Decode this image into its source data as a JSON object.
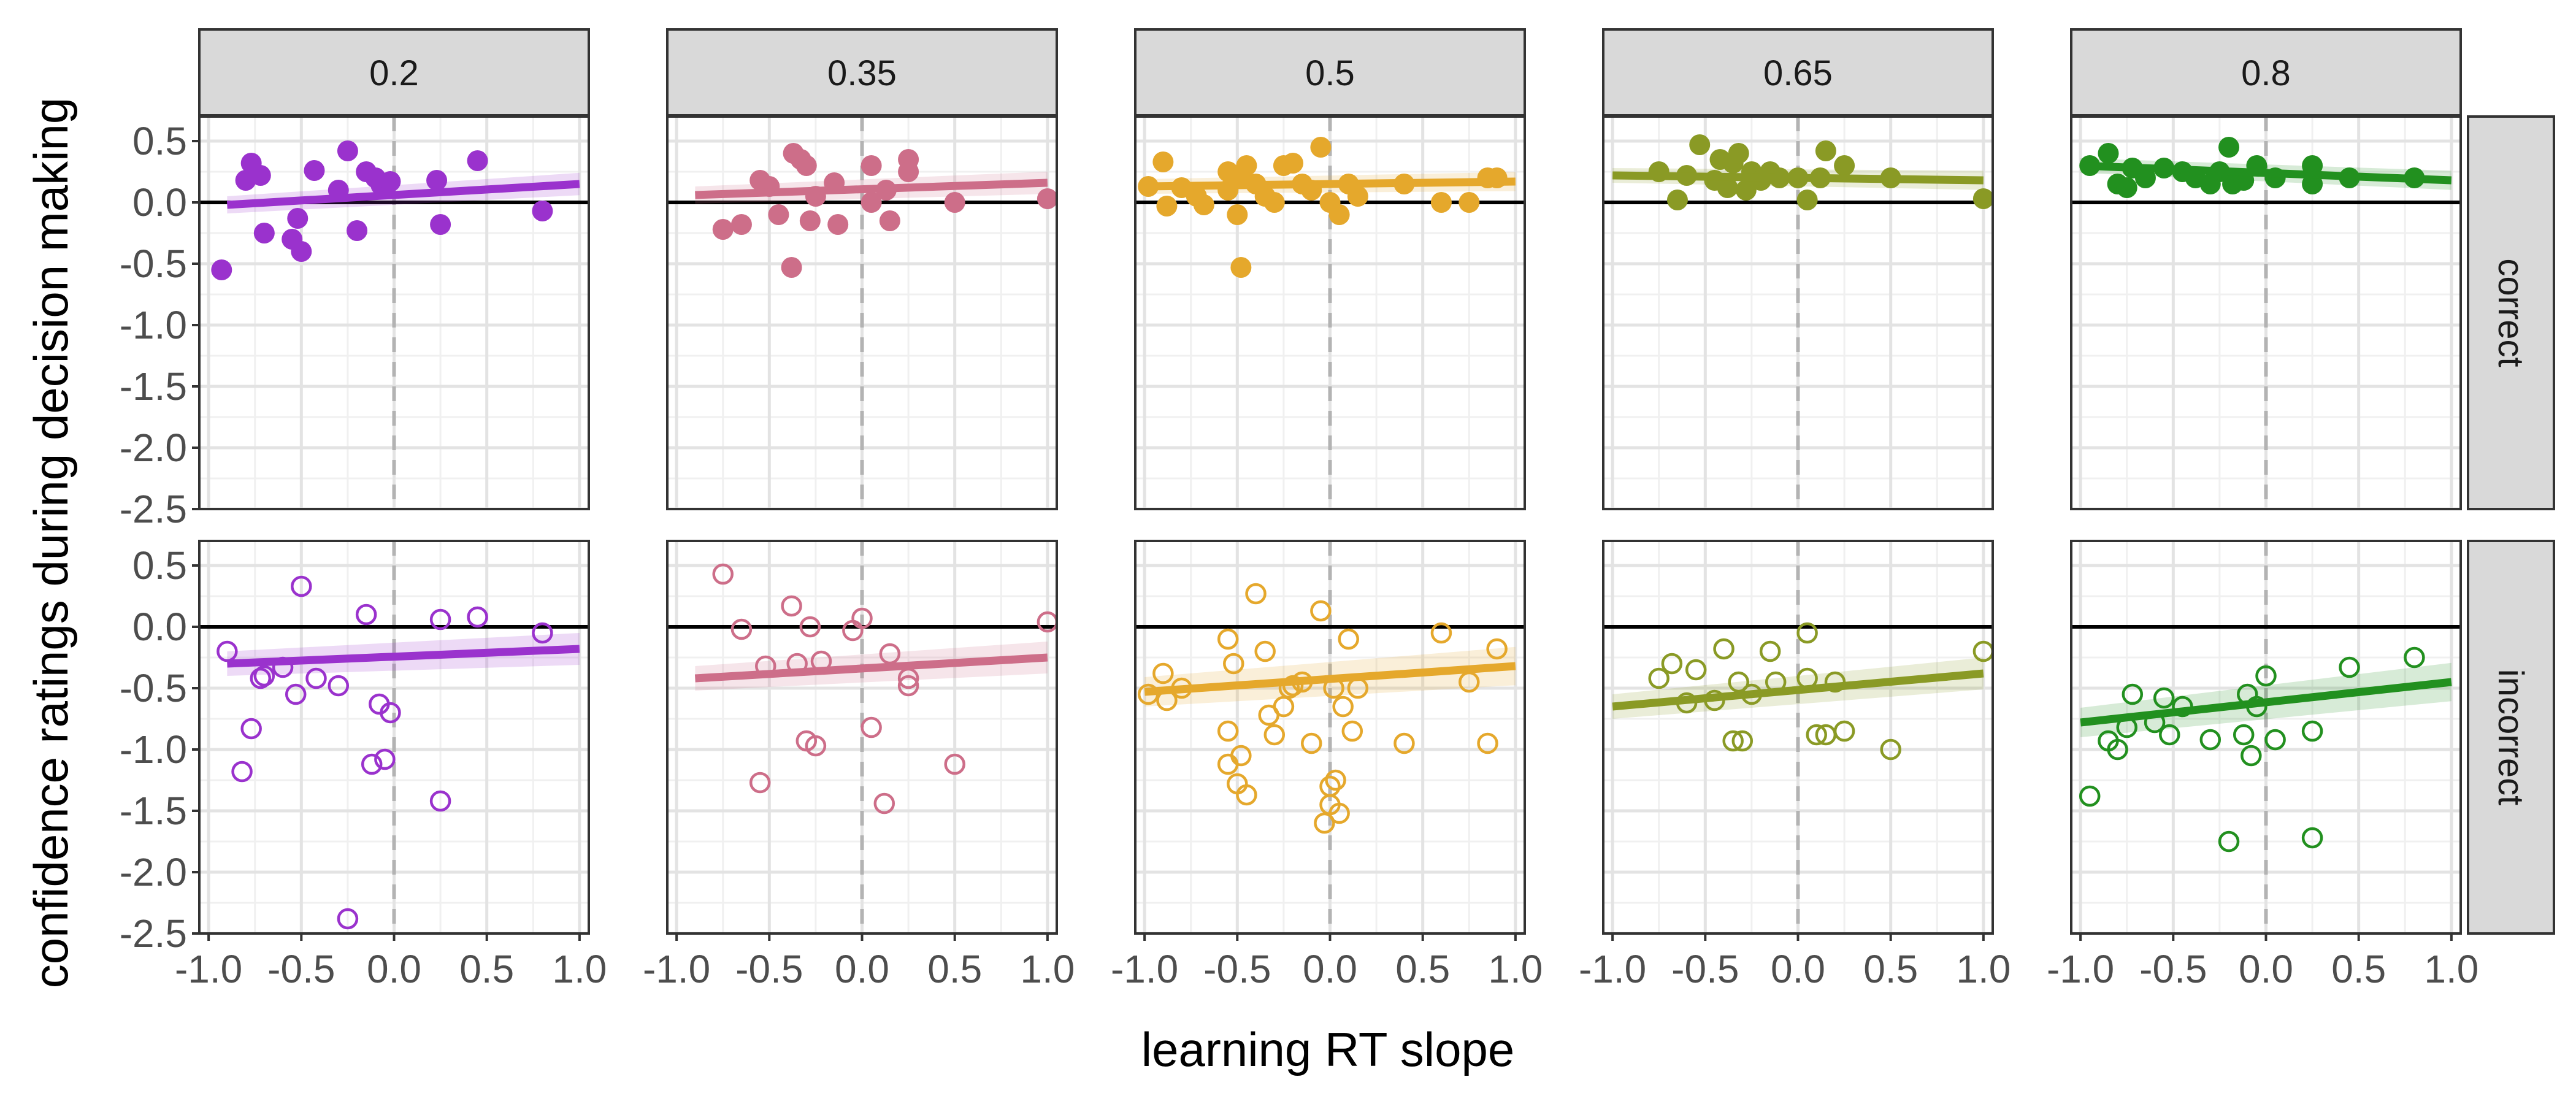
{
  "chart_data": {
    "type": "scatter",
    "title": "",
    "xlabel": "learning RT slope",
    "ylabel": "confidence ratings during decision making",
    "xlim": [
      -1.05,
      1.05
    ],
    "ylim": [
      -2.5,
      0.7
    ],
    "x_ticks": [
      -1.0,
      -0.5,
      0.0,
      0.5,
      1.0
    ],
    "x_tick_labels": [
      "-1.0",
      "-0.5",
      "0.0",
      "0.5",
      "1.0"
    ],
    "y_ticks": [
      0.5,
      0.0,
      -0.5,
      -1.0,
      -1.5,
      -2.0,
      -2.5
    ],
    "y_tick_labels": [
      "0.5",
      "0.0",
      "-0.5",
      "-1.0",
      "-1.5",
      "-2.0",
      "-2.5"
    ],
    "grid": true,
    "reference_lines": {
      "horizontal_y": 0,
      "vertical_x": 0
    },
    "column_strips": [
      "0.2",
      "0.35",
      "0.5",
      "0.65",
      "0.8"
    ],
    "row_strips": [
      "correct",
      "incorrect"
    ],
    "colors": [
      "#9a32cd",
      "#cd6e89",
      "#e5a82c",
      "#8a9a25",
      "#22901f"
    ],
    "panels": [
      {
        "col": "0.2",
        "row": "correct",
        "marker": "filled",
        "fit": {
          "x": [
            -0.9,
            1.0
          ],
          "y": [
            -0.02,
            0.15
          ],
          "band": 0.07
        },
        "points": [
          [
            -0.93,
            -0.55
          ],
          [
            -0.8,
            0.18
          ],
          [
            -0.77,
            0.32
          ],
          [
            -0.72,
            0.22
          ],
          [
            -0.7,
            -0.25
          ],
          [
            -0.55,
            -0.3
          ],
          [
            -0.52,
            -0.13
          ],
          [
            -0.5,
            -0.4
          ],
          [
            -0.43,
            0.26
          ],
          [
            -0.3,
            0.1
          ],
          [
            -0.25,
            0.42
          ],
          [
            -0.2,
            -0.23
          ],
          [
            -0.15,
            0.25
          ],
          [
            -0.1,
            0.2
          ],
          [
            -0.07,
            0.14
          ],
          [
            -0.02,
            0.17
          ],
          [
            0.23,
            0.18
          ],
          [
            0.25,
            -0.18
          ],
          [
            0.45,
            0.34
          ],
          [
            0.8,
            -0.07
          ]
        ]
      },
      {
        "col": "0.2",
        "row": "incorrect",
        "marker": "open",
        "fit": {
          "x": [
            -0.9,
            1.0
          ],
          "y": [
            -0.3,
            -0.18
          ],
          "band": 0.1
        },
        "points": [
          [
            -0.9,
            -0.2
          ],
          [
            -0.82,
            -1.18
          ],
          [
            -0.77,
            -0.83
          ],
          [
            -0.72,
            -0.42
          ],
          [
            -0.7,
            -0.4
          ],
          [
            -0.6,
            -0.33
          ],
          [
            -0.53,
            -0.55
          ],
          [
            -0.5,
            0.33
          ],
          [
            -0.42,
            -0.42
          ],
          [
            -0.3,
            -0.48
          ],
          [
            -0.25,
            -2.38
          ],
          [
            -0.15,
            0.1
          ],
          [
            -0.12,
            -1.12
          ],
          [
            -0.08,
            -0.63
          ],
          [
            -0.05,
            -1.08
          ],
          [
            -0.02,
            -0.7
          ],
          [
            0.25,
            -1.42
          ],
          [
            0.25,
            0.06
          ],
          [
            0.45,
            0.08
          ],
          [
            0.8,
            -0.05
          ]
        ]
      },
      {
        "col": "0.35",
        "row": "correct",
        "marker": "filled",
        "fit": {
          "x": [
            -0.9,
            1.0
          ],
          "y": [
            0.06,
            0.16
          ],
          "band": 0.07
        },
        "points": [
          [
            -0.75,
            -0.22
          ],
          [
            -0.65,
            -0.18
          ],
          [
            -0.55,
            0.18
          ],
          [
            -0.5,
            0.13
          ],
          [
            -0.45,
            -0.1
          ],
          [
            -0.38,
            -0.53
          ],
          [
            -0.37,
            0.4
          ],
          [
            -0.33,
            0.35
          ],
          [
            -0.3,
            0.3
          ],
          [
            -0.28,
            -0.15
          ],
          [
            -0.25,
            0.05
          ],
          [
            -0.15,
            0.16
          ],
          [
            -0.13,
            -0.18
          ],
          [
            0.05,
            0.3
          ],
          [
            0.05,
            0.0
          ],
          [
            0.13,
            0.1
          ],
          [
            0.15,
            -0.15
          ],
          [
            0.25,
            0.35
          ],
          [
            0.25,
            0.25
          ],
          [
            0.5,
            0.0
          ],
          [
            1.0,
            0.03
          ]
        ]
      },
      {
        "col": "0.35",
        "row": "incorrect",
        "marker": "open",
        "fit": {
          "x": [
            -0.9,
            1.0
          ],
          "y": [
            -0.42,
            -0.25
          ],
          "band": 0.1
        },
        "points": [
          [
            -0.75,
            0.43
          ],
          [
            -0.65,
            -0.02
          ],
          [
            -0.55,
            -1.27
          ],
          [
            -0.52,
            -0.32
          ],
          [
            -0.38,
            0.17
          ],
          [
            -0.35,
            -0.3
          ],
          [
            -0.3,
            -0.93
          ],
          [
            -0.28,
            0.0
          ],
          [
            -0.25,
            -0.97
          ],
          [
            -0.22,
            -0.28
          ],
          [
            -0.05,
            -0.03
          ],
          [
            0.0,
            0.07
          ],
          [
            0.05,
            -0.82
          ],
          [
            0.12,
            -1.44
          ],
          [
            0.15,
            -0.22
          ],
          [
            0.25,
            -0.48
          ],
          [
            0.25,
            -0.42
          ],
          [
            0.5,
            -1.12
          ],
          [
            1.0,
            0.04
          ]
        ]
      },
      {
        "col": "0.5",
        "row": "correct",
        "marker": "filled",
        "fit": {
          "x": [
            -1.0,
            1.0
          ],
          "y": [
            0.13,
            0.17
          ],
          "band": 0.06
        },
        "points": [
          [
            -0.98,
            0.13
          ],
          [
            -0.9,
            0.33
          ],
          [
            -0.88,
            -0.03
          ],
          [
            -0.8,
            0.12
          ],
          [
            -0.72,
            0.05
          ],
          [
            -0.68,
            -0.02
          ],
          [
            -0.55,
            0.25
          ],
          [
            -0.55,
            0.1
          ],
          [
            -0.5,
            -0.1
          ],
          [
            -0.48,
            0.2
          ],
          [
            -0.48,
            -0.53
          ],
          [
            -0.45,
            0.3
          ],
          [
            -0.4,
            0.15
          ],
          [
            -0.35,
            0.05
          ],
          [
            -0.3,
            0.0
          ],
          [
            -0.25,
            0.3
          ],
          [
            -0.2,
            0.32
          ],
          [
            -0.15,
            0.15
          ],
          [
            -0.1,
            0.1
          ],
          [
            -0.05,
            0.45
          ],
          [
            0.0,
            0.0
          ],
          [
            0.05,
            -0.1
          ],
          [
            0.1,
            0.15
          ],
          [
            0.15,
            0.05
          ],
          [
            0.4,
            0.15
          ],
          [
            0.6,
            0.0
          ],
          [
            0.75,
            0.0
          ],
          [
            0.85,
            0.2
          ],
          [
            0.9,
            0.2
          ]
        ]
      },
      {
        "col": "0.5",
        "row": "incorrect",
        "marker": "open",
        "fit": {
          "x": [
            -1.0,
            1.0
          ],
          "y": [
            -0.53,
            -0.32
          ],
          "band": 0.12
        },
        "points": [
          [
            -0.98,
            -0.55
          ],
          [
            -0.9,
            -0.38
          ],
          [
            -0.88,
            -0.6
          ],
          [
            -0.8,
            -0.5
          ],
          [
            -0.55,
            -0.1
          ],
          [
            -0.55,
            -0.85
          ],
          [
            -0.55,
            -1.12
          ],
          [
            -0.52,
            -0.3
          ],
          [
            -0.5,
            -1.28
          ],
          [
            -0.48,
            -1.05
          ],
          [
            -0.45,
            -1.37
          ],
          [
            -0.4,
            0.27
          ],
          [
            -0.35,
            -0.2
          ],
          [
            -0.33,
            -0.72
          ],
          [
            -0.3,
            -0.88
          ],
          [
            -0.25,
            -0.65
          ],
          [
            -0.22,
            -0.5
          ],
          [
            -0.2,
            -0.48
          ],
          [
            -0.15,
            -0.45
          ],
          [
            -0.1,
            -0.95
          ],
          [
            -0.05,
            0.13
          ],
          [
            -0.03,
            -1.6
          ],
          [
            0.0,
            -1.45
          ],
          [
            0.0,
            -1.3
          ],
          [
            0.02,
            -0.5
          ],
          [
            0.03,
            -1.25
          ],
          [
            0.05,
            -1.52
          ],
          [
            0.07,
            -0.65
          ],
          [
            0.1,
            -0.1
          ],
          [
            0.12,
            -0.85
          ],
          [
            0.15,
            -0.5
          ],
          [
            0.4,
            -0.95
          ],
          [
            0.6,
            -0.05
          ],
          [
            0.75,
            -0.45
          ],
          [
            0.85,
            -0.95
          ],
          [
            0.9,
            -0.18
          ]
        ]
      },
      {
        "col": "0.65",
        "row": "correct",
        "marker": "filled",
        "fit": {
          "x": [
            -1.0,
            1.0
          ],
          "y": [
            0.22,
            0.18
          ],
          "band": 0.06
        },
        "points": [
          [
            -0.75,
            0.25
          ],
          [
            -0.65,
            0.02
          ],
          [
            -0.6,
            0.22
          ],
          [
            -0.53,
            0.47
          ],
          [
            -0.45,
            0.18
          ],
          [
            -0.42,
            0.35
          ],
          [
            -0.38,
            0.12
          ],
          [
            -0.35,
            0.32
          ],
          [
            -0.32,
            0.4
          ],
          [
            -0.28,
            0.1
          ],
          [
            -0.25,
            0.25
          ],
          [
            -0.2,
            0.18
          ],
          [
            -0.15,
            0.25
          ],
          [
            -0.1,
            0.2
          ],
          [
            0.0,
            0.2
          ],
          [
            0.05,
            0.02
          ],
          [
            0.12,
            0.2
          ],
          [
            0.15,
            0.42
          ],
          [
            0.25,
            0.3
          ],
          [
            0.5,
            0.2
          ],
          [
            1.0,
            0.03
          ]
        ]
      },
      {
        "col": "0.65",
        "row": "incorrect",
        "marker": "open",
        "fit": {
          "x": [
            -1.0,
            1.0
          ],
          "y": [
            -0.65,
            -0.38
          ],
          "band": 0.1
        },
        "points": [
          [
            -0.75,
            -0.42
          ],
          [
            -0.68,
            -0.3
          ],
          [
            -0.6,
            -0.62
          ],
          [
            -0.55,
            -0.35
          ],
          [
            -0.45,
            -0.6
          ],
          [
            -0.4,
            -0.18
          ],
          [
            -0.35,
            -0.93
          ],
          [
            -0.32,
            -0.45
          ],
          [
            -0.3,
            -0.93
          ],
          [
            -0.25,
            -0.55
          ],
          [
            -0.15,
            -0.2
          ],
          [
            -0.12,
            -0.45
          ],
          [
            0.05,
            -0.05
          ],
          [
            0.05,
            -0.42
          ],
          [
            0.1,
            -0.88
          ],
          [
            0.15,
            -0.88
          ],
          [
            0.2,
            -0.45
          ],
          [
            0.25,
            -0.85
          ],
          [
            0.5,
            -1.0
          ],
          [
            1.0,
            -0.2
          ]
        ]
      },
      {
        "col": "0.8",
        "row": "correct",
        "marker": "filled",
        "fit": {
          "x": [
            -1.0,
            1.0
          ],
          "y": [
            0.3,
            0.18
          ],
          "band": 0.06
        },
        "points": [
          [
            -0.95,
            0.3
          ],
          [
            -0.85,
            0.4
          ],
          [
            -0.8,
            0.15
          ],
          [
            -0.75,
            0.12
          ],
          [
            -0.72,
            0.28
          ],
          [
            -0.65,
            0.2
          ],
          [
            -0.55,
            0.28
          ],
          [
            -0.45,
            0.25
          ],
          [
            -0.38,
            0.2
          ],
          [
            -0.3,
            0.15
          ],
          [
            -0.25,
            0.25
          ],
          [
            -0.2,
            0.45
          ],
          [
            -0.18,
            0.15
          ],
          [
            -0.12,
            0.18
          ],
          [
            -0.05,
            0.3
          ],
          [
            0.05,
            0.2
          ],
          [
            0.25,
            0.3
          ],
          [
            0.25,
            0.15
          ],
          [
            0.45,
            0.2
          ],
          [
            0.8,
            0.2
          ]
        ]
      },
      {
        "col": "0.8",
        "row": "incorrect",
        "marker": "open",
        "fit": {
          "x": [
            -1.0,
            1.0
          ],
          "y": [
            -0.78,
            -0.45
          ],
          "band": 0.12
        },
        "points": [
          [
            -0.95,
            -1.38
          ],
          [
            -0.85,
            -0.93
          ],
          [
            -0.8,
            -1.0
          ],
          [
            -0.75,
            -0.82
          ],
          [
            -0.72,
            -0.55
          ],
          [
            -0.6,
            -0.78
          ],
          [
            -0.55,
            -0.58
          ],
          [
            -0.52,
            -0.88
          ],
          [
            -0.45,
            -0.65
          ],
          [
            -0.3,
            -0.92
          ],
          [
            -0.2,
            -1.75
          ],
          [
            -0.12,
            -0.88
          ],
          [
            -0.1,
            -0.55
          ],
          [
            -0.08,
            -1.05
          ],
          [
            -0.05,
            -0.65
          ],
          [
            0.0,
            -0.4
          ],
          [
            0.05,
            -0.92
          ],
          [
            0.25,
            -1.72
          ],
          [
            0.25,
            -0.85
          ],
          [
            0.45,
            -0.33
          ],
          [
            0.8,
            -0.25
          ]
        ]
      }
    ]
  }
}
